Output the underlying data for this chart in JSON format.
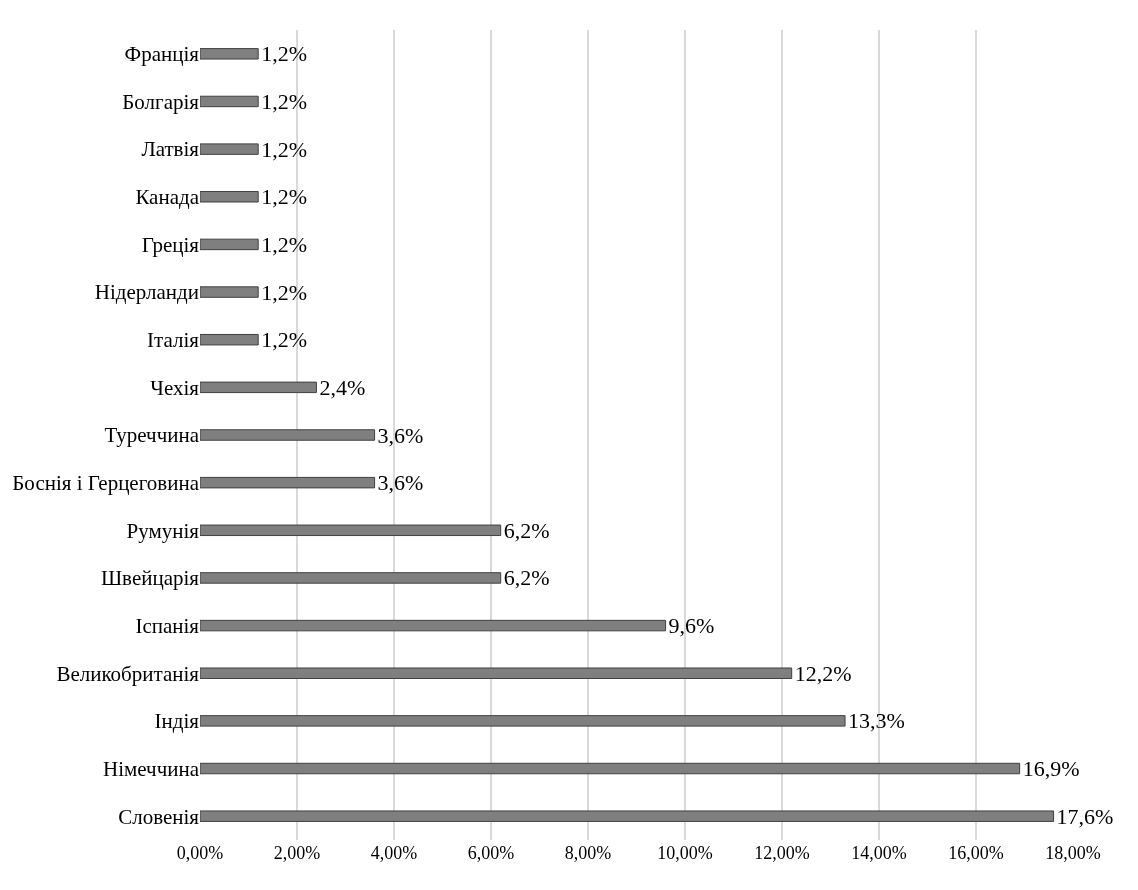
{
  "chart_data": {
    "type": "bar",
    "orientation": "horizontal",
    "categories": [
      "Франція",
      "Болгарія",
      "Латвія",
      "Канада",
      "Греція",
      "Нідерланди",
      "Італія",
      "Чехія",
      "Туреччина",
      "Боснія і Герцеговина",
      "Румунія",
      "Швейцарія",
      "Іспанія",
      "Великобританія",
      "Індія",
      "Німеччина",
      "Словенія"
    ],
    "values": [
      1.2,
      1.2,
      1.2,
      1.2,
      1.2,
      1.2,
      1.2,
      2.4,
      3.6,
      3.6,
      6.2,
      6.2,
      9.6,
      12.2,
      13.3,
      16.9,
      17.6
    ],
    "value_labels": [
      "1,2%",
      "1,2%",
      "1,2%",
      "1,2%",
      "1,2%",
      "1,2%",
      "1,2%",
      "2,4%",
      "3,6%",
      "3,6%",
      "6,2%",
      "6,2%",
      "9,6%",
      "12,2%",
      "13,3%",
      "16,9%",
      "17,6%"
    ],
    "color": "#7f7f7f",
    "xlim": [
      0,
      18
    ],
    "xticks": [
      {
        "value": 0,
        "label": "0,00%"
      },
      {
        "value": 2,
        "label": "2,00%"
      },
      {
        "value": 4,
        "label": "4,00%"
      },
      {
        "value": 6,
        "label": "6,00%"
      },
      {
        "value": 8,
        "label": "8,00%"
      },
      {
        "value": 10,
        "label": "10,00%"
      },
      {
        "value": 12,
        "label": "12,00%"
      },
      {
        "value": 14,
        "label": "14,00%"
      },
      {
        "value": 16,
        "label": "16,00%"
      },
      {
        "value": 18,
        "label": "18,00%"
      }
    ],
    "grid": "x",
    "legend": false
  }
}
